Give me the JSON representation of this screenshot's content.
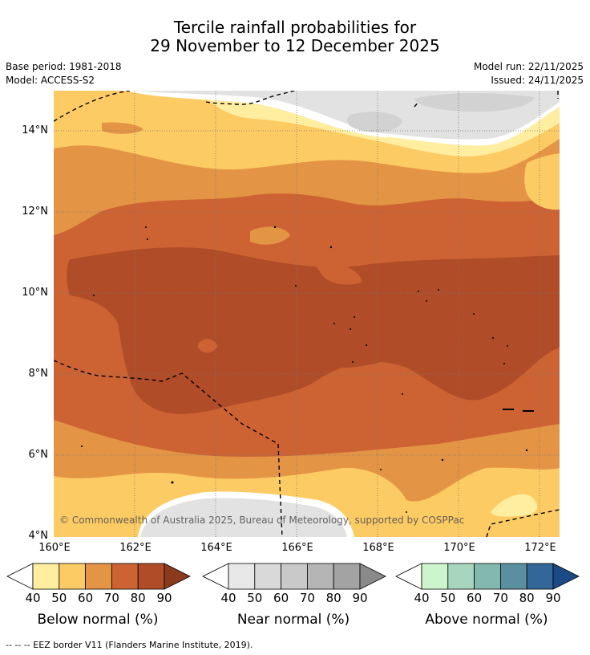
{
  "title": {
    "line1": "Tercile rainfall probabilities for",
    "line2": "29 November to 12 December 2025"
  },
  "meta": {
    "base_period": "Base period: 1981-2018",
    "model": "Model: ACCESS-S2",
    "model_run": "Model run: 22/11/2025",
    "issued": "Issued: 24/11/2025"
  },
  "map": {
    "latitude_labels": [
      "14°N",
      "12°N",
      "10°N",
      "8°N",
      "6°N",
      "4°N"
    ],
    "longitude_labels": [
      "160°E",
      "162°E",
      "164°E",
      "166°E",
      "168°E",
      "170°E",
      "172°E"
    ],
    "lat_range": [
      4,
      15
    ],
    "lon_range": [
      160,
      172.5
    ],
    "copyright": "© Commonwealth of Australia 2025, Bureau of Meteorology, supported by COSPPac"
  },
  "legends": [
    {
      "title": "Below normal (%)",
      "ticks": [
        "40",
        "50",
        "60",
        "70",
        "80",
        "90"
      ],
      "colors": [
        "#ffeda0",
        "#fdcb63",
        "#e49445",
        "#cd6333",
        "#b04c28",
        "#8c3a1e"
      ]
    },
    {
      "title": "Near normal (%)",
      "ticks": [
        "40",
        "50",
        "60",
        "70",
        "80",
        "90"
      ],
      "colors": [
        "#e8e8e8",
        "#d9d9d9",
        "#c9c9c9",
        "#b5b5b5",
        "#a3a3a3",
        "#8a8a8a"
      ]
    },
    {
      "title": "Above normal (%)",
      "ticks": [
        "40",
        "50",
        "60",
        "70",
        "80",
        "90"
      ],
      "colors": [
        "#ccf5cc",
        "#a6d6bd",
        "#82b8ad",
        "#5b8fa0",
        "#336699",
        "#1b4a86"
      ]
    }
  ],
  "footnote": "--  --  -- EEZ border V11 (Flanders Marine Institute, 2019)."
}
